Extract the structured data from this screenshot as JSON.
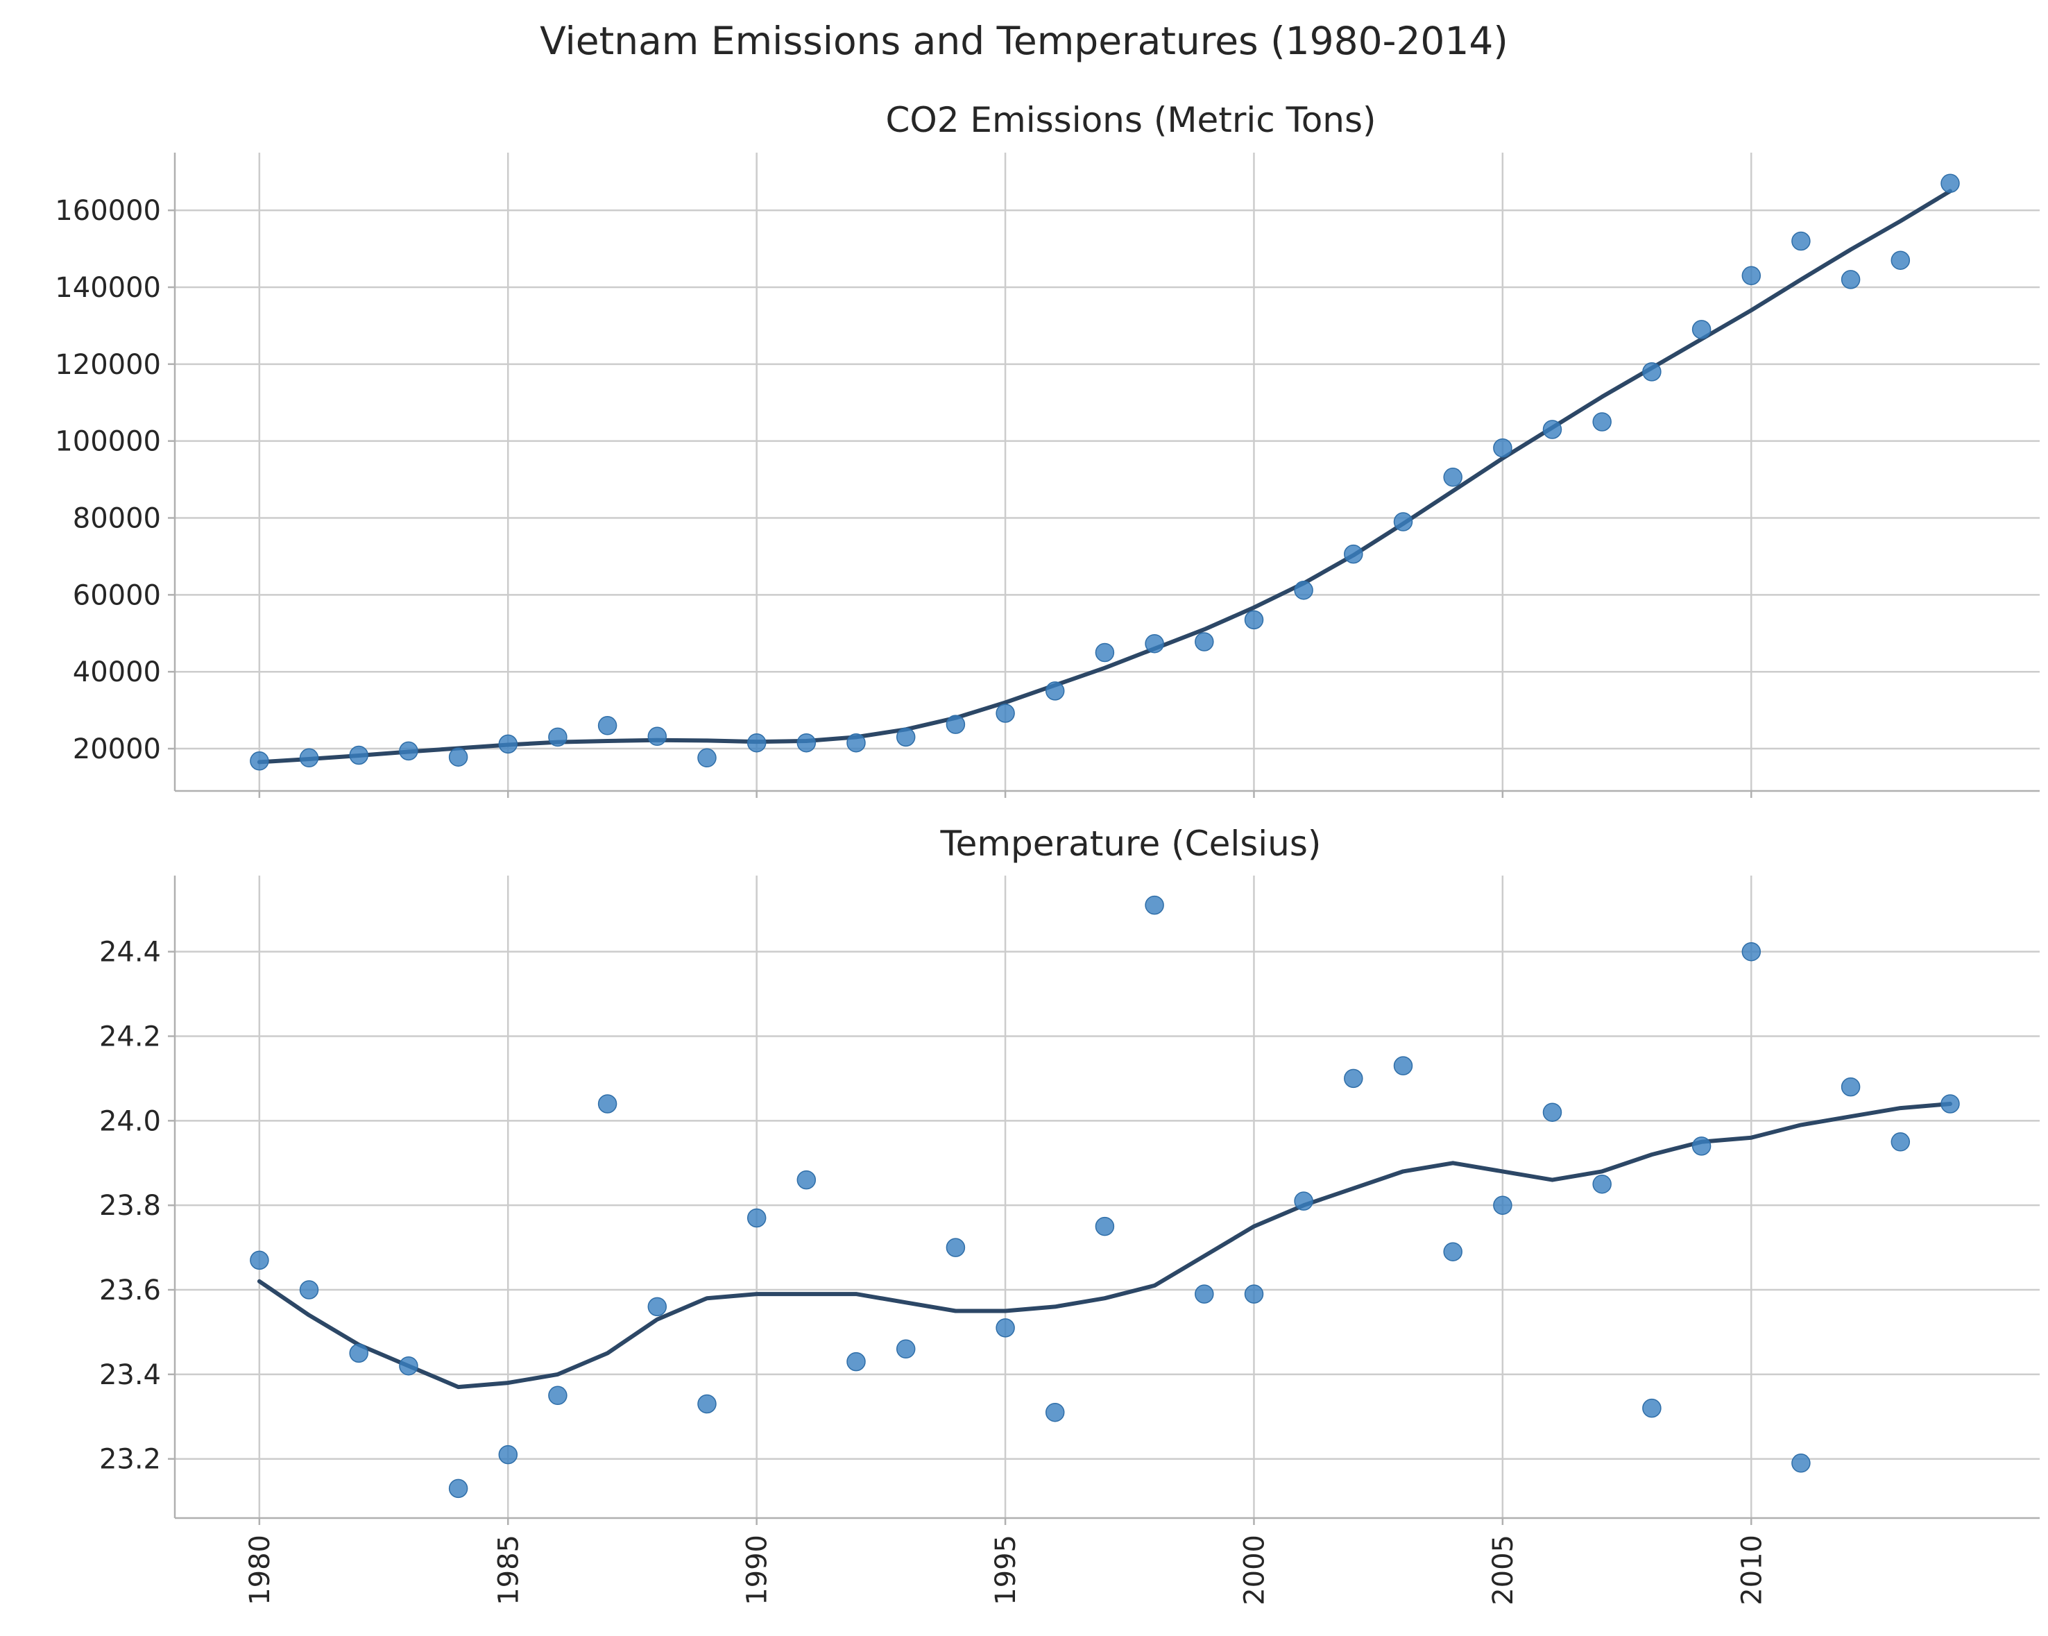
{
  "figure": {
    "title": "Vietnam Emissions and Temperatures (1980-2014)"
  },
  "chart_data": [
    {
      "type": "scatter",
      "title": "CO2 Emissions (Metric Tons)",
      "xlabel": "",
      "ylabel": "",
      "xlim": [
        1978.3,
        2015.8
      ],
      "ylim": [
        9000,
        175000
      ],
      "xticks": [
        1980,
        1985,
        1990,
        1995,
        2000,
        2005,
        2010
      ],
      "yticks": [
        20000,
        40000,
        60000,
        80000,
        100000,
        120000,
        140000,
        160000
      ],
      "grid": true,
      "colors": {
        "points": "#3a7fc1",
        "trend": "#2c4766"
      },
      "series": [
        {
          "kind": "points",
          "x": [
            1980,
            1981,
            1982,
            1983,
            1984,
            1985,
            1986,
            1987,
            1988,
            1989,
            1990,
            1991,
            1992,
            1993,
            1994,
            1995,
            1996,
            1997,
            1998,
            1999,
            2000,
            2001,
            2002,
            2003,
            2004,
            2005,
            2006,
            2007,
            2008,
            2009,
            2010,
            2011,
            2012,
            2013,
            2014
          ],
          "y": [
            16800,
            17600,
            18300,
            19400,
            17800,
            21200,
            23000,
            26000,
            23200,
            17600,
            21500,
            21500,
            21500,
            23000,
            26300,
            29200,
            35000,
            45000,
            47300,
            47800,
            53500,
            61200,
            70600,
            79000,
            90600,
            98200,
            103000,
            105000,
            118000,
            129000,
            143000,
            152000,
            142000,
            147000,
            167000
          ]
        },
        {
          "kind": "trend",
          "x": [
            1980,
            1981,
            1982,
            1983,
            1984,
            1985,
            1986,
            1987,
            1988,
            1989,
            1990,
            1991,
            1992,
            1993,
            1994,
            1995,
            1996,
            1997,
            1998,
            1999,
            2000,
            2001,
            2002,
            2003,
            2004,
            2005,
            2006,
            2007,
            2008,
            2009,
            2010,
            2011,
            2012,
            2013,
            2014
          ],
          "y": [
            16500,
            17300,
            18200,
            19200,
            20100,
            21000,
            21700,
            22000,
            22200,
            22100,
            21800,
            22000,
            23000,
            25000,
            28000,
            32000,
            36500,
            41000,
            46000,
            51000,
            56700,
            63000,
            70300,
            78500,
            87000,
            95500,
            103500,
            111500,
            119000,
            126500,
            134000,
            142000,
            149800,
            157200,
            165000
          ]
        }
      ]
    },
    {
      "type": "scatter",
      "title": "Temperature (Celsius)",
      "xlabel": "",
      "ylabel": "",
      "xlim": [
        1978.3,
        2015.8
      ],
      "ylim": [
        23.06,
        24.58
      ],
      "xticks": [
        1980,
        1985,
        1990,
        1995,
        2000,
        2005,
        2010
      ],
      "yticks": [
        23.2,
        23.4,
        23.6,
        23.8,
        24.0,
        24.2,
        24.4
      ],
      "grid": true,
      "colors": {
        "points": "#3a7fc1",
        "trend": "#2c4766"
      },
      "series": [
        {
          "kind": "points",
          "x": [
            1980,
            1981,
            1982,
            1983,
            1984,
            1985,
            1986,
            1987,
            1988,
            1989,
            1990,
            1991,
            1992,
            1993,
            1994,
            1995,
            1996,
            1997,
            1998,
            1999,
            2000,
            2001,
            2002,
            2003,
            2004,
            2005,
            2006,
            2007,
            2008,
            2009,
            2010,
            2011,
            2012,
            2013,
            2014
          ],
          "y": [
            23.67,
            23.6,
            23.45,
            23.42,
            23.13,
            23.21,
            23.35,
            24.04,
            23.56,
            23.33,
            23.77,
            23.86,
            23.43,
            23.46,
            23.7,
            23.51,
            23.31,
            23.75,
            24.51,
            23.59,
            23.59,
            23.81,
            24.1,
            24.13,
            23.69,
            23.8,
            24.02,
            23.85,
            23.32,
            23.94,
            24.4,
            23.19,
            24.08,
            23.95,
            24.04
          ]
        },
        {
          "kind": "trend",
          "x": [
            1980,
            1981,
            1982,
            1983,
            1984,
            1985,
            1986,
            1987,
            1988,
            1989,
            1990,
            1991,
            1992,
            1993,
            1994,
            1995,
            1996,
            1997,
            1998,
            1999,
            2000,
            2001,
            2002,
            2003,
            2004,
            2005,
            2006,
            2007,
            2008,
            2009,
            2010,
            2011,
            2012,
            2013,
            2014
          ],
          "y": [
            23.62,
            23.54,
            23.47,
            23.42,
            23.37,
            23.38,
            23.4,
            23.45,
            23.53,
            23.58,
            23.59,
            23.59,
            23.59,
            23.57,
            23.55,
            23.55,
            23.56,
            23.58,
            23.61,
            23.68,
            23.75,
            23.8,
            23.84,
            23.88,
            23.9,
            23.88,
            23.86,
            23.88,
            23.92,
            23.95,
            23.96,
            23.99,
            24.01,
            24.03,
            24.04
          ]
        }
      ]
    }
  ]
}
